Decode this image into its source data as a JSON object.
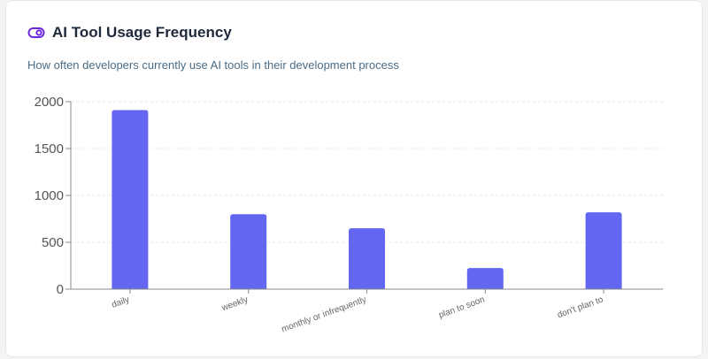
{
  "card": {
    "title": "AI Tool Usage Frequency",
    "subtitle": "How often developers currently use AI tools in their development process",
    "icon": "toggle-icon"
  },
  "colors": {
    "bar": "#6366f1",
    "accent": "#6d28d9",
    "grid": "#e5e7eb",
    "axis": "#888888"
  },
  "chart_data": {
    "type": "bar",
    "title": "AI Tool Usage Frequency",
    "categories": [
      "daily",
      "weekly",
      "monthly or infrequently",
      "plan to soon",
      "don't plan to"
    ],
    "values": [
      1910,
      800,
      650,
      225,
      820
    ],
    "ylim": [
      0,
      2000
    ],
    "yticks": [
      0,
      500,
      1000,
      1500,
      2000
    ],
    "xlabel": "",
    "ylabel": "",
    "grid": true,
    "legend": "none"
  }
}
